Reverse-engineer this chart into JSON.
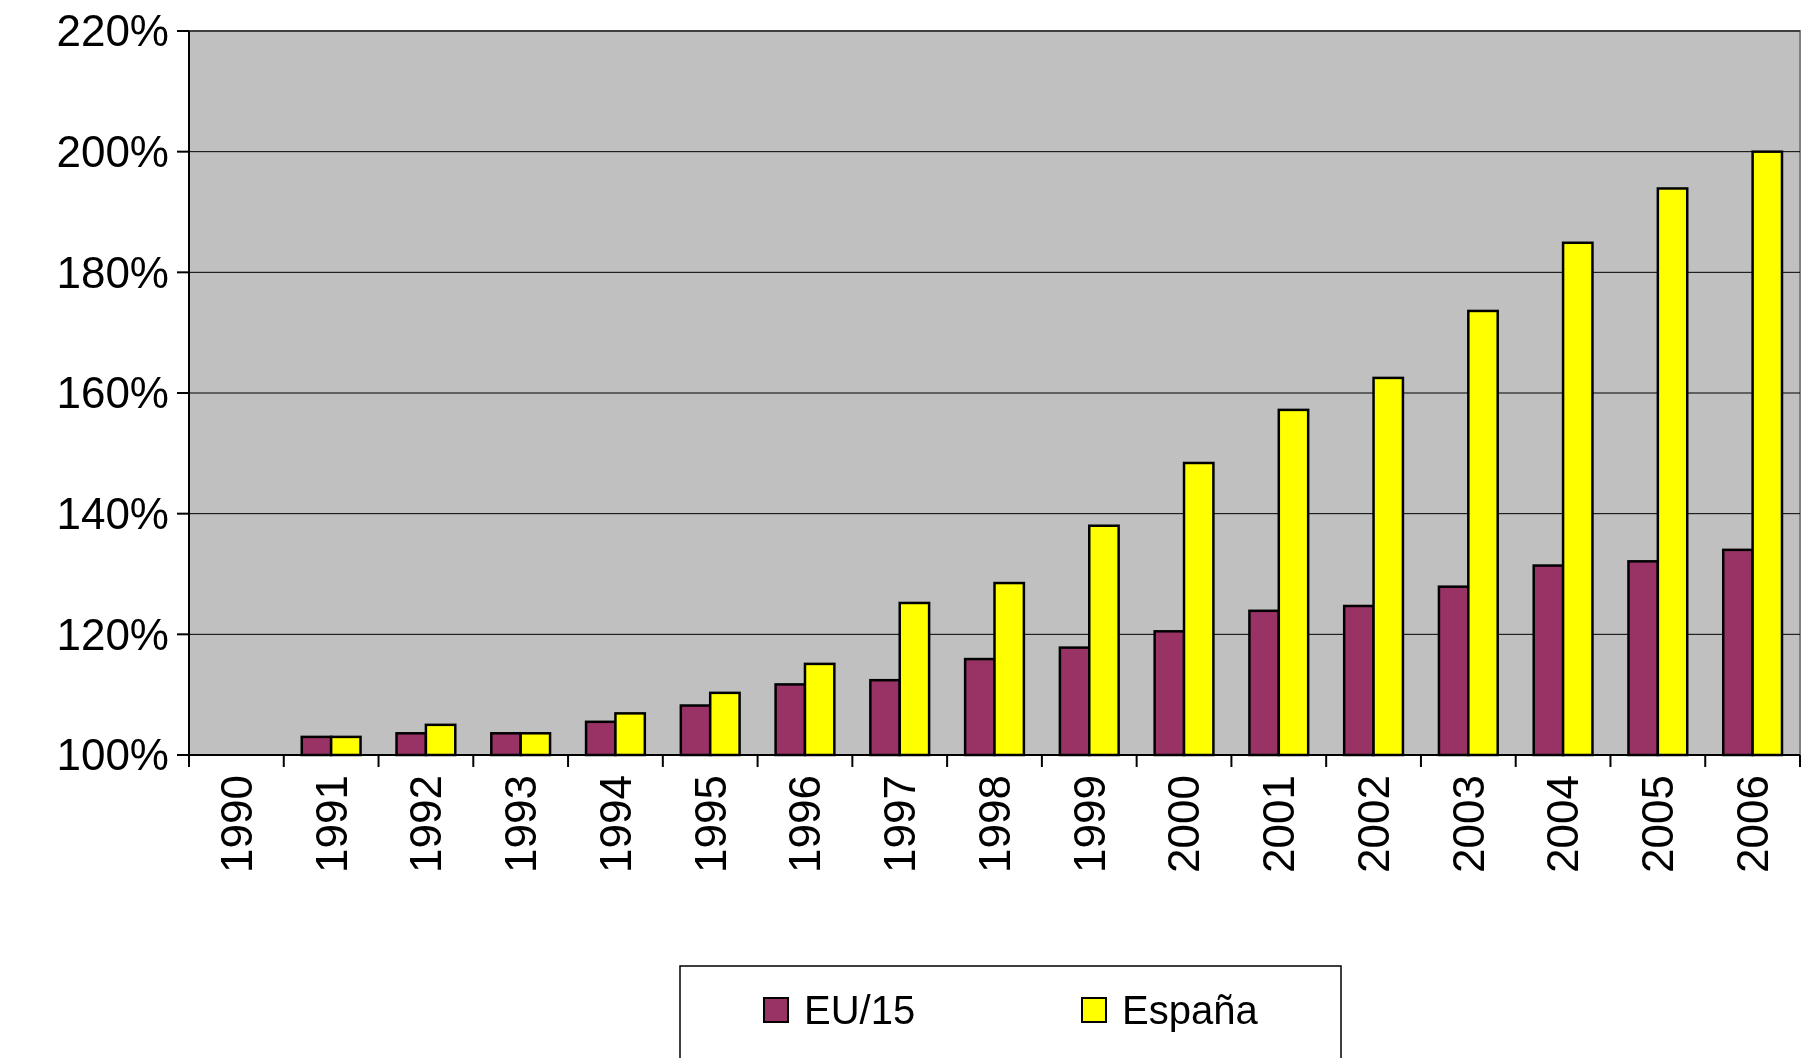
{
  "chart_data": {
    "type": "bar",
    "categories": [
      "1990",
      "1991",
      "1992",
      "1993",
      "1994",
      "1995",
      "1996",
      "1997",
      "1998",
      "1999",
      "2000",
      "2001",
      "2002",
      "2003",
      "2004",
      "2005",
      "2006"
    ],
    "series": [
      {
        "name": "EU/15",
        "color": "#993366",
        "values": [
          100,
          103,
          103.6,
          103.6,
          105.5,
          108.2,
          111.7,
          112.4,
          115.9,
          117.8,
          120.5,
          123.9,
          124.7,
          127.9,
          131.4,
          132.1,
          134
        ]
      },
      {
        "name": "España",
        "color": "#ffff00",
        "values": [
          100,
          103,
          105,
          103.6,
          106.9,
          110.3,
          115.1,
          125.2,
          128.5,
          138,
          148.4,
          157.2,
          162.5,
          173.6,
          184.9,
          193.9,
          200
        ]
      }
    ],
    "ylim": [
      100,
      220
    ],
    "yticks": [
      {
        "value": 100,
        "label": "100%"
      },
      {
        "value": 120,
        "label": "120%"
      },
      {
        "value": 140,
        "label": "140%"
      },
      {
        "value": 160,
        "label": "160%"
      },
      {
        "value": 180,
        "label": "180%"
      },
      {
        "value": 200,
        "label": "200%"
      },
      {
        "value": 220,
        "label": "220%"
      }
    ],
    "grid": "y",
    "legend": "bottom"
  }
}
